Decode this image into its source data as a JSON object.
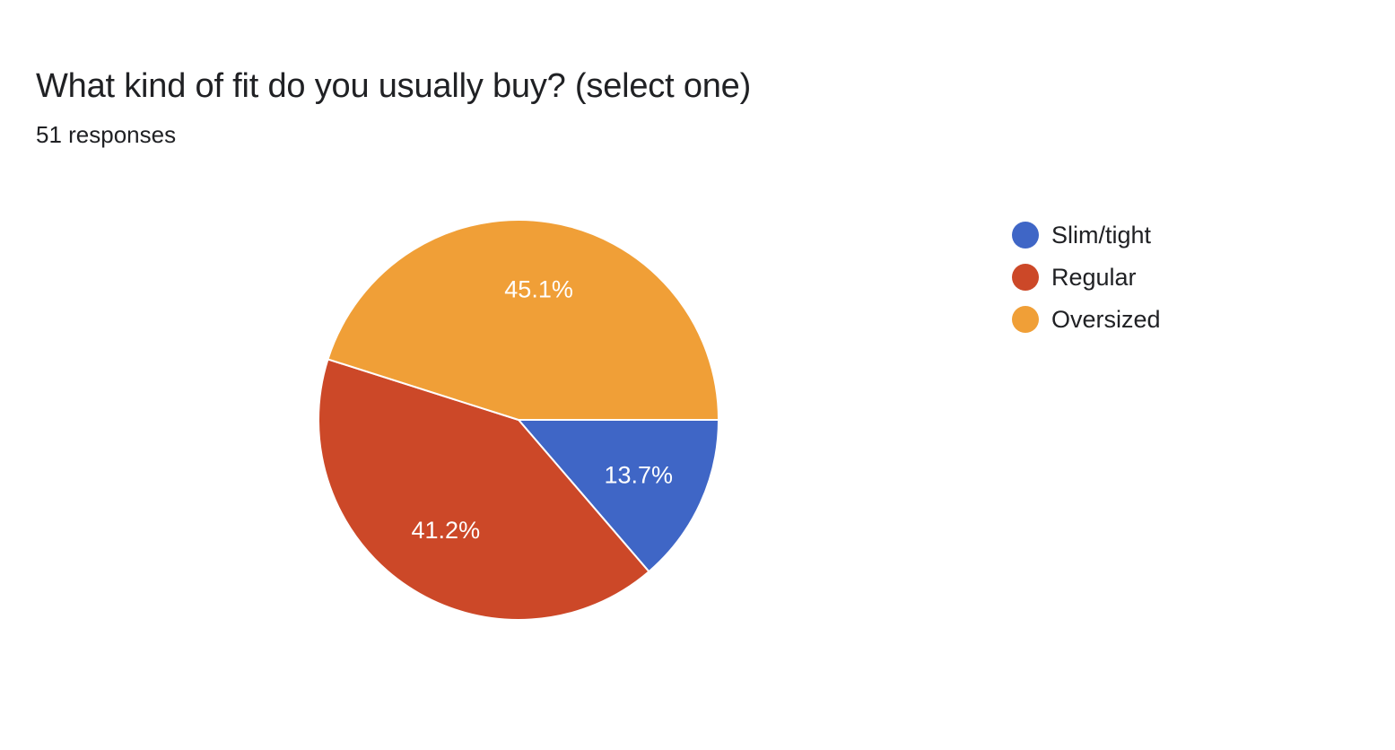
{
  "header": {
    "title": "What kind of fit do you usually buy? (select one)",
    "subtitle": "51 responses"
  },
  "chart_data": {
    "type": "pie",
    "categories": [
      "Slim/tight",
      "Regular",
      "Oversized"
    ],
    "values": [
      13.7,
      41.2,
      45.1
    ],
    "labels": [
      "13.7%",
      "41.2%",
      "45.1%"
    ],
    "colors": [
      "#3f66c6",
      "#cc4828",
      "#f09f37"
    ],
    "title": "What kind of fit do you usually buy? (select one)",
    "legend": "right"
  }
}
